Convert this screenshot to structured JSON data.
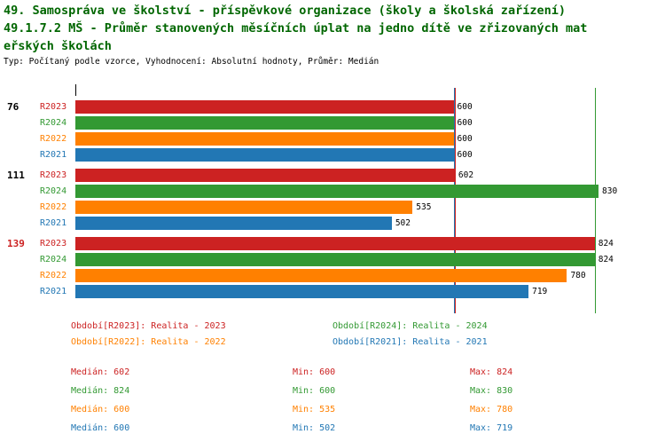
{
  "title": {
    "line1": "49. Samospráva ve školství - příspěvkové organizace (školy a školská zařízení)",
    "line2": "49.1.7.2 MŠ - Průměr stanovených měsíčních úplat na jedno dítě ve zřizovaných mat",
    "line3": "eřských školách"
  },
  "subtitle": "Typ: Počítaný podle vzorce, Vyhodnocení: Absolutní hodnoty, Průměr: Medián",
  "chart_data": {
    "type": "bar",
    "orientation": "horizontal",
    "axis_max": 830,
    "series_order": [
      "R2023",
      "R2024",
      "R2022",
      "R2021"
    ],
    "series_colors": {
      "R2023": "#cc2222",
      "R2024": "#339933",
      "R2022": "#ff8000",
      "R2021": "#2277b4"
    },
    "groups": [
      {
        "label": "76",
        "label_color": "#000000",
        "bars": [
          {
            "series": "R2023",
            "value": 600
          },
          {
            "series": "R2024",
            "value": 600
          },
          {
            "series": "R2022",
            "value": 600
          },
          {
            "series": "R2021",
            "value": 600
          }
        ]
      },
      {
        "label": "111",
        "label_color": "#000000",
        "bars": [
          {
            "series": "R2023",
            "value": 602
          },
          {
            "series": "R2024",
            "value": 830
          },
          {
            "series": "R2022",
            "value": 535
          },
          {
            "series": "R2021",
            "value": 502
          }
        ]
      },
      {
        "label": "139",
        "label_color": "#cc2222",
        "bars": [
          {
            "series": "R2023",
            "value": 824
          },
          {
            "series": "R2024",
            "value": 824
          },
          {
            "series": "R2022",
            "value": 780
          },
          {
            "series": "R2021",
            "value": 719
          }
        ]
      }
    ],
    "median_lines": [
      {
        "series": "R2023",
        "value": 602
      },
      {
        "series": "R2024",
        "value": 824
      },
      {
        "series": "R2022",
        "value": 600
      },
      {
        "series": "R2021",
        "value": 600
      }
    ]
  },
  "legend": [
    {
      "label": "Období[R2023]: Realita - 2023",
      "color": "#cc2222"
    },
    {
      "label": "Období[R2024]: Realita - 2024",
      "color": "#339933"
    },
    {
      "label": "Období[R2022]: Realita - 2022",
      "color": "#ff8000"
    },
    {
      "label": "Období[R2021]: Realita - 2021",
      "color": "#2277b4"
    }
  ],
  "stats": [
    {
      "median": "Medián: 602",
      "min": "Min: 600",
      "max": "Max: 824",
      "color": "#cc2222"
    },
    {
      "median": "Medián: 824",
      "min": "Min: 600",
      "max": "Max: 830",
      "color": "#339933"
    },
    {
      "median": "Medián: 600",
      "min": "Min: 535",
      "max": "Max: 780",
      "color": "#ff8000"
    },
    {
      "median": "Medián: 600",
      "min": "Min: 502",
      "max": "Max: 719",
      "color": "#2277b4"
    }
  ]
}
